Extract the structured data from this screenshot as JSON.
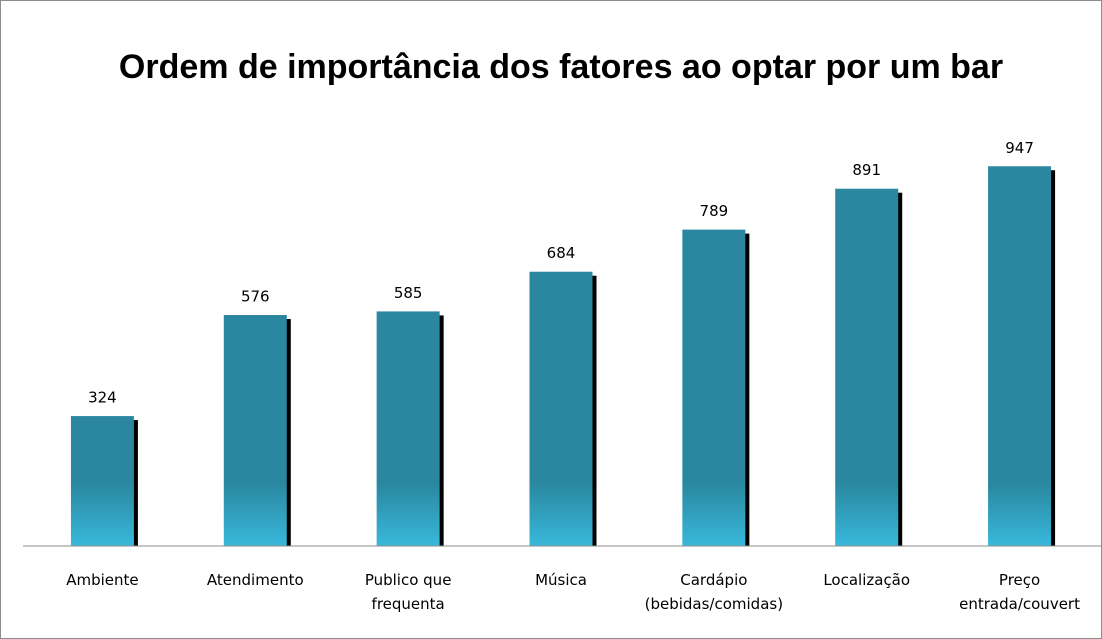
{
  "chart_data": {
    "type": "bar",
    "title": "Ordem de importância dos fatores ao optar por um bar",
    "categories": [
      "Ambiente",
      "Atendimento",
      "Publico que frequenta",
      "Música",
      "Cardápio (bebidas/comidas)",
      "Localização",
      "Preço entrada/couvert"
    ],
    "values": [
      324,
      576,
      585,
      684,
      789,
      891,
      947
    ],
    "color": "#2a879f",
    "ylim": [
      0,
      1000
    ]
  }
}
